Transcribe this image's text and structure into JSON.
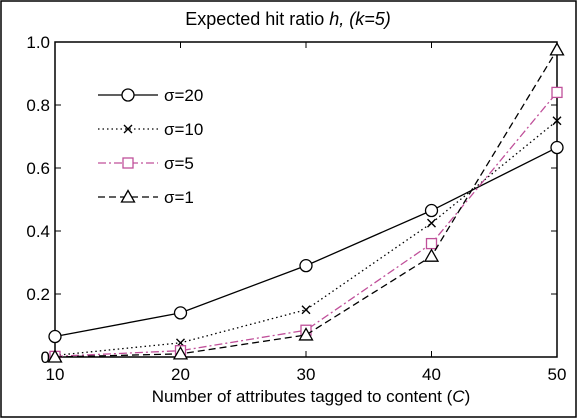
{
  "chart_data": {
    "type": "line",
    "title_prefix": "Expected hit ratio ",
    "title_italic": "h, (k=5)",
    "xlabel_prefix": "Number of attributes tagged to content (",
    "xlabel_italic": "C",
    "xlabel_suffix": ")",
    "x": [
      10,
      20,
      30,
      40,
      50
    ],
    "xlim": [
      10,
      50
    ],
    "ylim": [
      0,
      1
    ],
    "xticks": [
      "10",
      "20",
      "30",
      "40",
      "50"
    ],
    "yticks": [
      "0",
      "0.2",
      "0.4",
      "0.6",
      "0.8",
      "1.0"
    ],
    "grid": false,
    "legend_position": "upper-left",
    "series": [
      {
        "name": "σ=20",
        "values": [
          0.065,
          0.14,
          0.29,
          0.465,
          0.665
        ],
        "color": "#000000",
        "dash": "solid",
        "marker": "circle"
      },
      {
        "name": "σ=10",
        "values": [
          0.005,
          0.045,
          0.15,
          0.425,
          0.75
        ],
        "color": "#000000",
        "dash": "dotted",
        "marker": "x"
      },
      {
        "name": "σ=5",
        "values": [
          0.002,
          0.02,
          0.085,
          0.36,
          0.84
        ],
        "color": "#c0509a",
        "dash": "dashdot",
        "marker": "square"
      },
      {
        "name": "σ=1",
        "values": [
          0.0,
          0.01,
          0.07,
          0.32,
          0.975
        ],
        "color": "#000000",
        "dash": "dashed",
        "marker": "triangle"
      }
    ]
  }
}
